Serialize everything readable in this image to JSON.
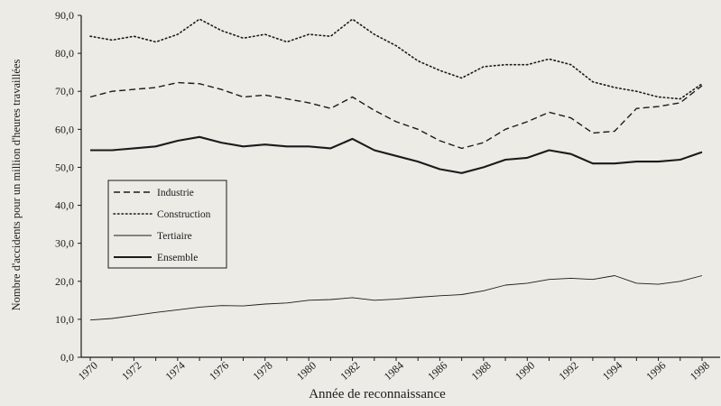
{
  "chart_data": {
    "type": "line",
    "xlabel": "Année de reconnaissance",
    "ylabel": "Nombre d'accidents pour un million d'heures travaillées",
    "x": [
      1970,
      1971,
      1972,
      1973,
      1974,
      1975,
      1976,
      1977,
      1978,
      1979,
      1980,
      1981,
      1982,
      1983,
      1984,
      1985,
      1986,
      1987,
      1988,
      1989,
      1990,
      1991,
      1992,
      1993,
      1994,
      1995,
      1996,
      1997,
      1998
    ],
    "xticks": [
      "1970",
      "1972",
      "1974",
      "1976",
      "1978",
      "1980",
      "1982",
      "1984",
      "1986",
      "1988",
      "1990",
      "1992",
      "1994",
      "1996",
      "1998"
    ],
    "yticks": [
      "0,0",
      "10,0",
      "20,0",
      "30,0",
      "40,0",
      "50,0",
      "60,0",
      "70,0",
      "80,0",
      "90,0"
    ],
    "xlim": [
      1970,
      1998
    ],
    "ylim": [
      0,
      90
    ],
    "grid": false,
    "legend_position": "left-middle",
    "series": [
      {
        "name": "Industrie",
        "style": "dashed",
        "values": [
          68.5,
          70.0,
          70.5,
          71.0,
          72.3,
          72.0,
          70.5,
          68.5,
          69.0,
          68.0,
          67.0,
          65.5,
          68.5,
          65.0,
          62.0,
          60.0,
          57.0,
          55.0,
          56.5,
          60.0,
          62.0,
          64.5,
          63.0,
          59.0,
          59.5,
          65.5,
          66.0,
          67.0,
          71.5
        ]
      },
      {
        "name": "Construction",
        "style": "dotted",
        "values": [
          84.5,
          83.5,
          84.5,
          83.0,
          85.0,
          89.0,
          86.0,
          84.0,
          85.0,
          83.0,
          85.0,
          84.5,
          89.0,
          85.0,
          82.0,
          78.0,
          75.5,
          73.5,
          76.5,
          77.0,
          77.0,
          78.5,
          77.0,
          72.5,
          71.0,
          70.0,
          68.5,
          68.0,
          72.0
        ]
      },
      {
        "name": "Tertiaire",
        "style": "thin",
        "values": [
          9.8,
          10.2,
          11.0,
          11.8,
          12.5,
          13.2,
          13.6,
          13.5,
          14.0,
          14.3,
          15.0,
          15.2,
          15.7,
          15.0,
          15.3,
          15.8,
          16.2,
          16.5,
          17.5,
          19.0,
          19.5,
          20.5,
          20.8,
          20.5,
          21.5,
          19.5,
          19.2,
          20.0,
          21.5
        ]
      },
      {
        "name": "Ensemble",
        "style": "thick",
        "values": [
          54.5,
          54.5,
          55.0,
          55.5,
          57.0,
          58.0,
          56.5,
          55.5,
          56.0,
          55.5,
          55.5,
          55.0,
          57.5,
          54.5,
          53.0,
          51.5,
          49.5,
          48.5,
          50.0,
          52.0,
          52.5,
          54.5,
          53.5,
          51.0,
          51.0,
          51.5,
          51.5,
          52.0,
          54.0
        ]
      }
    ]
  }
}
